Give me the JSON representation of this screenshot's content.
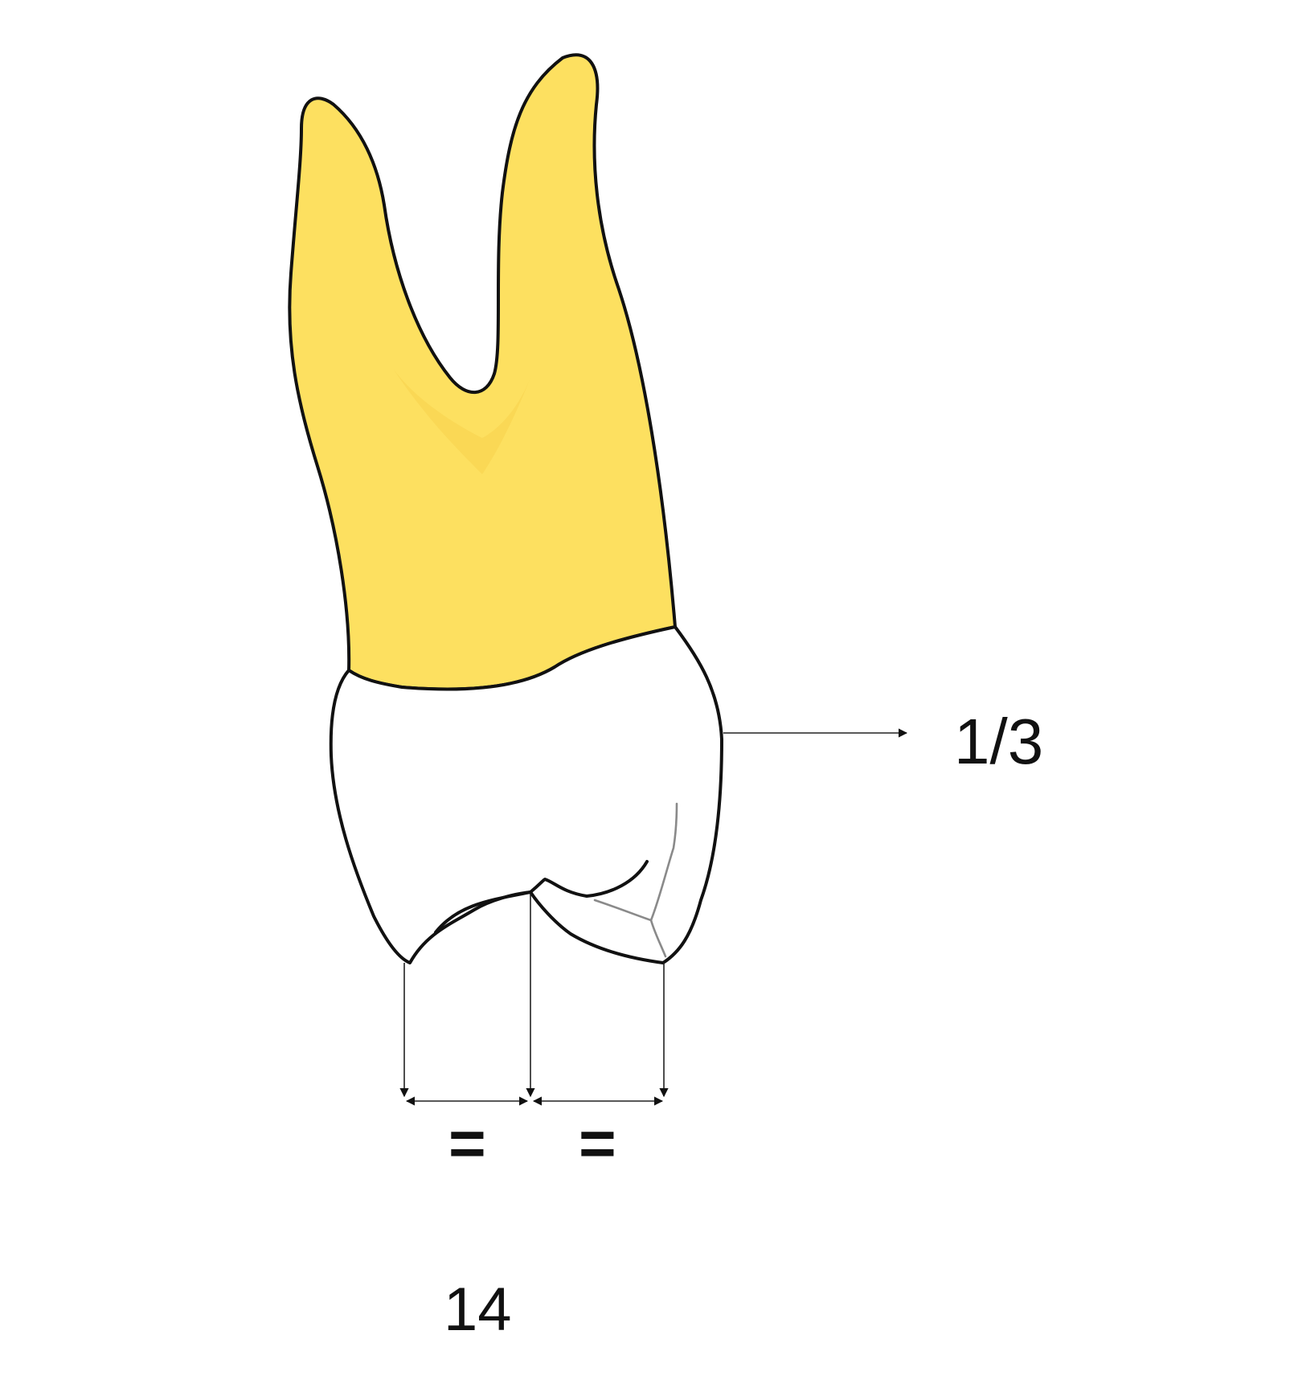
{
  "figure": {
    "ratio_label": "1/3",
    "equal_left": "=",
    "equal_right": "=",
    "tooth_number": "14"
  },
  "colors": {
    "root_fill": "#FDE060",
    "root_shade": "#F8D04A",
    "crown_fill": "#FFFFFF",
    "outline": "#111111",
    "groove": "#8A8A8A"
  },
  "icons": [
    "arrow-right-icon",
    "arrow-left-icon",
    "arrow-down-icon"
  ]
}
